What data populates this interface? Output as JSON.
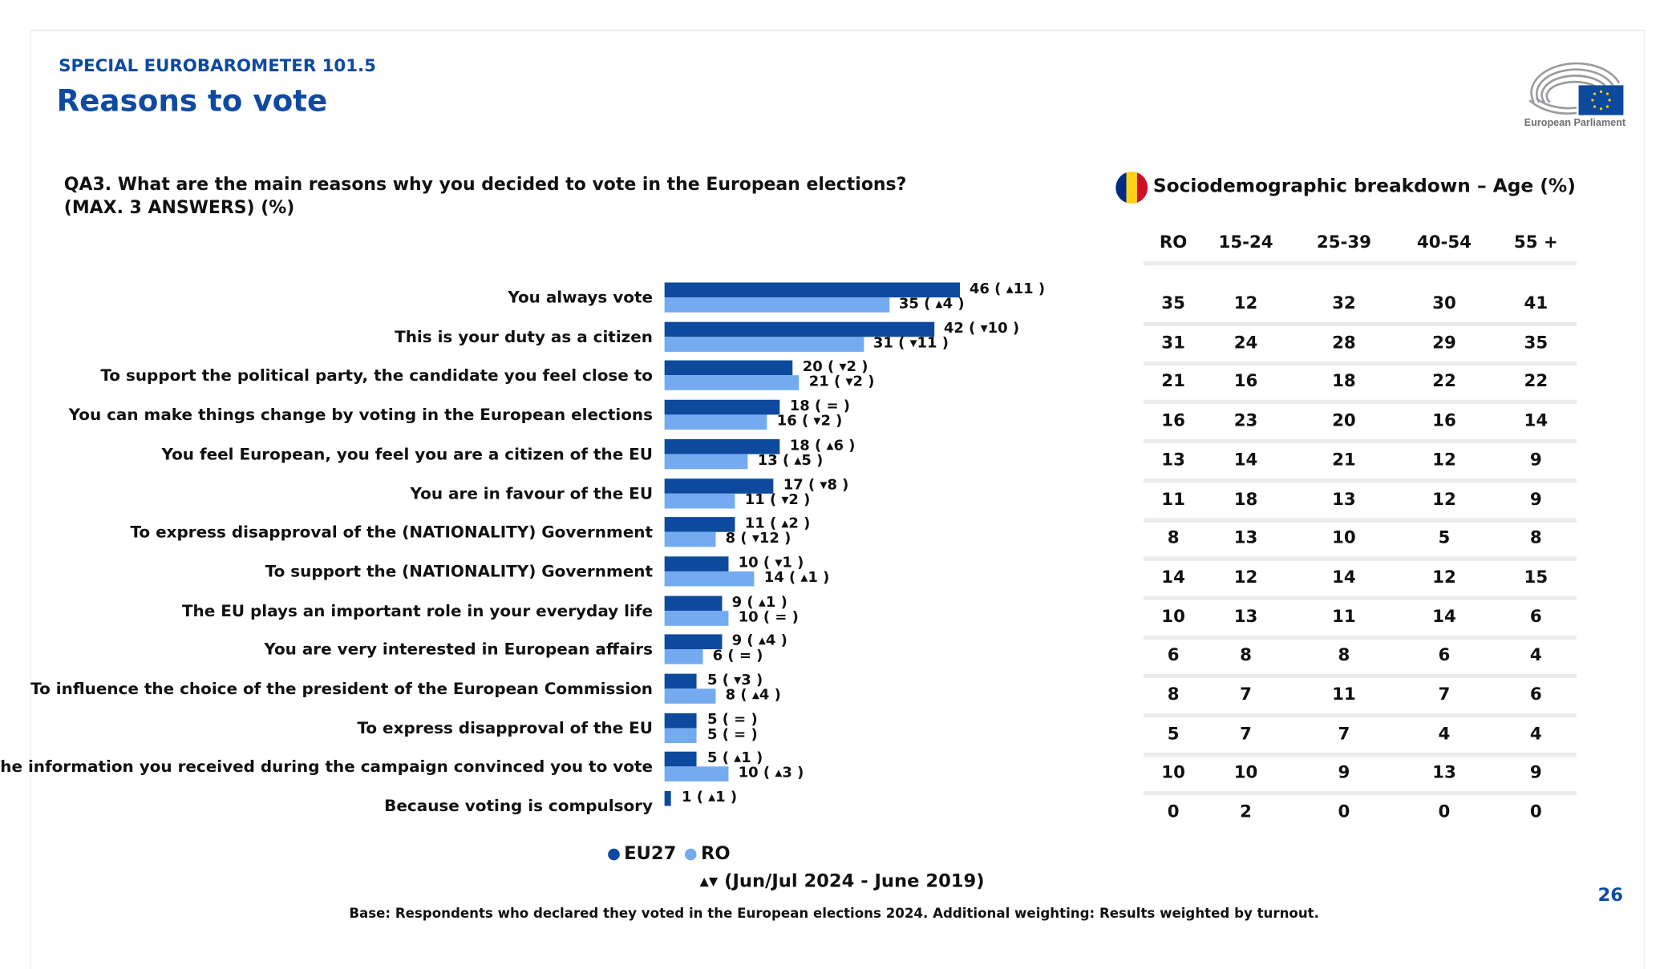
{
  "header": {
    "kicker": "SPECIAL EUROBAROMETER 101.5",
    "title": "Reasons to vote",
    "logo_text": "European Parliament"
  },
  "question": {
    "line1": "QA3. What are the main reasons why you decided to vote in the European elections?",
    "line2": "(MAX. 3 ANSWERS) (%)"
  },
  "colors": {
    "eu27": "#0d4a9e",
    "ro": "#74aaf0",
    "accent": "#0f4aa0"
  },
  "chart_data": {
    "type": "bar",
    "orientation": "horizontal",
    "categories": [
      "You always vote",
      "This is your duty as a citizen",
      "To support the political party, the candidate you feel close to",
      "You can make things change by voting in the European elections",
      "You feel European, you feel you are a citizen of the EU",
      "You are in favour of the EU",
      "To express disapproval of the (NATIONALITY) Government",
      "To support the (NATIONALITY) Government",
      "The EU plays an important role in your everyday life",
      "You are very interested in European affairs",
      "To influence the choice of the president of the European Commission",
      "To express disapproval of the EU",
      "The information you received during the campaign convinced you to vote",
      "Because voting is compulsory"
    ],
    "series": [
      {
        "name": "EU27",
        "values": [
          46,
          42,
          20,
          18,
          18,
          17,
          11,
          10,
          9,
          9,
          5,
          5,
          5,
          1
        ],
        "labels": [
          "46 ( ▴11 )",
          "42 ( ▾10 )",
          "20 ( ▾2 )",
          "18 ( = )",
          "18 ( ▴6 )",
          "17 ( ▾8 )",
          "11 ( ▴2 )",
          "10 ( ▾1 )",
          "9 ( ▴1 )",
          "9 ( ▴4 )",
          "5 ( ▾3 )",
          "5 ( = )",
          "5 ( ▴1 )",
          "1 ( ▴1 )"
        ]
      },
      {
        "name": "RO",
        "values": [
          35,
          31,
          21,
          16,
          13,
          11,
          8,
          14,
          10,
          6,
          8,
          5,
          10,
          0
        ],
        "labels": [
          "35 ( ▴4 )",
          "31 ( ▾11 )",
          "21 ( ▾2 )",
          "16 ( ▾2 )",
          "13 ( ▴5 )",
          "11 ( ▾2 )",
          "8 ( ▾12 )",
          "14 ( ▴1 )",
          "10 ( = )",
          "6 ( = )",
          "8 ( ▴4 )",
          "5 ( = )",
          "10 ( ▴3 )",
          ""
        ]
      }
    ],
    "xlim": [
      0,
      50
    ],
    "grid": false,
    "legend": {
      "position": "bottom",
      "entries": [
        "EU27",
        "RO"
      ]
    },
    "trend_note": "▴▾ (Jun/Jul 2024 - June 2019)"
  },
  "breakdown": {
    "title": "Sociodemographic breakdown – Age (%)",
    "columns": [
      "RO",
      "15-24",
      "25-39",
      "40-54",
      "55 +"
    ],
    "rows": [
      [
        "35",
        "12",
        "32",
        "30",
        "41"
      ],
      [
        "31",
        "24",
        "28",
        "29",
        "35"
      ],
      [
        "21",
        "16",
        "18",
        "22",
        "22"
      ],
      [
        "16",
        "23",
        "20",
        "16",
        "14"
      ],
      [
        "13",
        "14",
        "21",
        "12",
        "9"
      ],
      [
        "11",
        "18",
        "13",
        "12",
        "9"
      ],
      [
        "8",
        "13",
        "10",
        "5",
        "8"
      ],
      [
        "14",
        "12",
        "14",
        "12",
        "15"
      ],
      [
        "10",
        "13",
        "11",
        "14",
        "6"
      ],
      [
        "6",
        "8",
        "8",
        "6",
        "4"
      ],
      [
        "8",
        "7",
        "11",
        "7",
        "6"
      ],
      [
        "5",
        "7",
        "7",
        "4",
        "4"
      ],
      [
        "10",
        "10",
        "9",
        "13",
        "9"
      ],
      [
        "0",
        "2",
        "0",
        "0",
        "0"
      ]
    ]
  },
  "footer": {
    "base": "Base: Respondents who declared they voted in the European elections 2024. Additional weighting: Results weighted by turnout.",
    "page_number": "26"
  }
}
